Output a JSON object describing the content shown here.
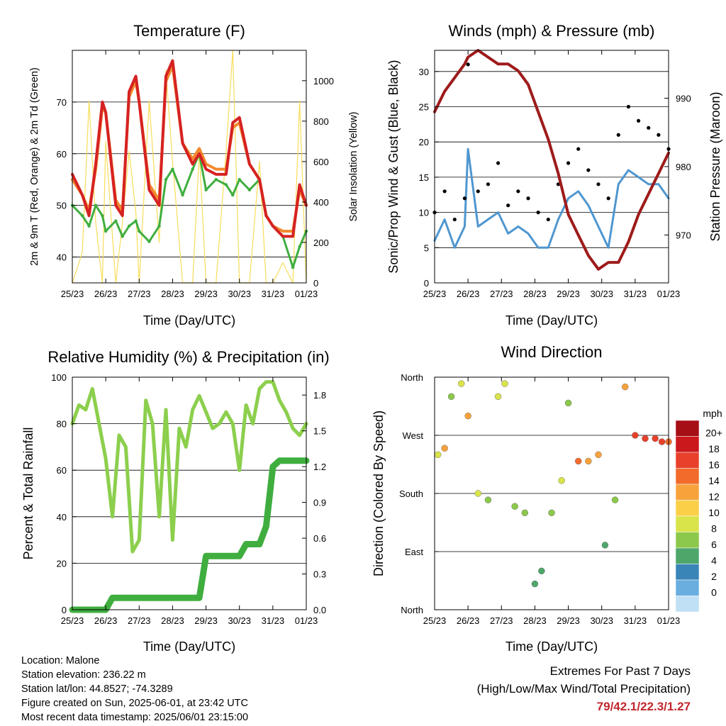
{
  "days": [
    "25/23",
    "26/23",
    "27/23",
    "28/23",
    "29/23",
    "30/23",
    "31/23",
    "01/23"
  ],
  "colors": {
    "temp2m": "#d62222",
    "temp9m": "#f28a2e",
    "dew": "#3fae3f",
    "solar": "#f7dd5a",
    "gust": "#000000",
    "wind": "#4f97d0",
    "pressure": "#9e1b1b",
    "rh": "#8ccf4d",
    "precip": "#3fae3f"
  },
  "temperature": {
    "title": "Temperature (F)",
    "xlabel": "Time (Day/UTC)",
    "ylabel_left": "2m & 9m T (Red, Orange) & 2m Td (Green)",
    "ylabel_right": "Solar Insolation (Yellow)",
    "y_ticks_left": [
      "40",
      "50",
      "60",
      "70"
    ],
    "y_ticks_right": [
      "0",
      "200",
      "400",
      "600",
      "800",
      "1000"
    ]
  },
  "winds": {
    "title": "Winds (mph) & Pressure (mb)",
    "xlabel": "Time (Day/UTC)",
    "ylabel_left": "Sonic/Prop Wind & Gust (Blue, Black)",
    "ylabel_right": "Station Pressure (Maroon)",
    "y_ticks_left": [
      "0",
      "5",
      "10",
      "15",
      "20",
      "25",
      "30"
    ],
    "y_ticks_right": [
      "970",
      "980",
      "990"
    ]
  },
  "humidity": {
    "title": "Relative Humidity (%) & Precipitation (in)",
    "xlabel": "Time (Day/UTC)",
    "ylabel_left": "Percent & Total Rainfall",
    "y_ticks_left": [
      "0",
      "20",
      "40",
      "60",
      "80",
      "100"
    ],
    "y_ticks_right": [
      "0.0",
      "0.3",
      "0.6",
      "0.9",
      "1.2",
      "1.5",
      "1.8"
    ]
  },
  "direction": {
    "title": "Wind Direction",
    "xlabel": "Time (Day/UTC)",
    "ylabel": "Direction (Colored By Speed)",
    "y_ticks": [
      "North",
      "East",
      "South",
      "West",
      "North"
    ],
    "legend_title": "mph",
    "legend_labels": [
      "20+",
      "18",
      "16",
      "14",
      "12",
      "10",
      "8",
      "6",
      "4",
      "2",
      "0"
    ],
    "legend_colors": [
      "#a50f15",
      "#cb181d",
      "#e8412b",
      "#f26b2b",
      "#f8a23c",
      "#fbd048",
      "#d9e34a",
      "#8cc84b",
      "#4fa66b",
      "#3a85b8",
      "#6aaee0",
      "#bfe0f5"
    ]
  },
  "info": {
    "location": "Location: Malone",
    "elevation": "Station elevation: 236.22 m",
    "latlon": "Station lat/lon: 44.8527; -74.3289",
    "created": "Figure created on Sun, 2025-06-01, at 23:42 UTC",
    "timestamp": "Most recent data timestamp: 2025/06/01 23:15:00"
  },
  "extremes": {
    "title": "Extremes For Past 7 Days",
    "subtitle": "(High/Low/Max Wind/Total Precipitation)",
    "values": "79/42.1/22.3/1.27"
  },
  "chart_data": [
    {
      "type": "line",
      "title": "Temperature (F)",
      "xlabel": "Time (Day/UTC)",
      "ylabel": "2m & 9m T (Red, Orange) & 2m Td (Green)",
      "ylabel_right": "Solar Insolation (Yellow)",
      "xlim": [
        0,
        7
      ],
      "ylim": [
        35,
        80
      ],
      "ylim_right": [
        0,
        1150
      ],
      "x": [
        0,
        0.3,
        0.5,
        0.7,
        0.9,
        1.0,
        1.3,
        1.5,
        1.7,
        1.9,
        2.0,
        2.3,
        2.6,
        2.8,
        3.0,
        3.3,
        3.6,
        3.8,
        4.0,
        4.3,
        4.6,
        4.8,
        5.0,
        5.3,
        5.6,
        5.8,
        6.0,
        6.3,
        6.6,
        6.8,
        7.0
      ],
      "series": [
        {
          "name": "2m T",
          "values": [
            56,
            52,
            48,
            58,
            70,
            68,
            50,
            48,
            72,
            75,
            70,
            53,
            50,
            75,
            78,
            62,
            58,
            60,
            57,
            56,
            56,
            66,
            67,
            58,
            55,
            48,
            46,
            44,
            44,
            54,
            50
          ]
        },
        {
          "name": "9m T",
          "values": [
            55,
            52,
            49,
            57,
            69,
            68,
            51,
            49,
            71,
            74,
            70,
            54,
            51,
            74,
            77,
            62,
            59,
            61,
            58,
            57,
            57,
            65,
            66,
            58,
            55,
            48,
            46,
            45,
            45,
            53,
            50
          ]
        },
        {
          "name": "2m Td",
          "values": [
            50,
            48,
            46,
            50,
            48,
            45,
            47,
            44,
            46,
            47,
            45,
            43,
            46,
            55,
            57,
            52,
            57,
            60,
            53,
            55,
            54,
            52,
            55,
            53,
            55,
            48,
            46,
            44,
            38,
            42,
            45
          ]
        },
        {
          "name": "Solar Insolation",
          "axis": "right",
          "values": [
            0,
            150,
            900,
            300,
            0,
            700,
            0,
            300,
            650,
            350,
            0,
            900,
            200,
            1050,
            600,
            0,
            0,
            650,
            0,
            0,
            650,
            1150,
            0,
            0,
            600,
            0,
            0,
            100,
            0,
            900,
            0
          ]
        }
      ]
    },
    {
      "type": "line",
      "title": "Winds (mph) & Pressure (mb)",
      "xlabel": "Time (Day/UTC)",
      "ylabel": "Sonic/Prop Wind & Gust (Blue, Black)",
      "ylabel_right": "Station Pressure (Maroon)",
      "xlim": [
        0,
        7
      ],
      "ylim": [
        0,
        33
      ],
      "ylim_right": [
        963,
        997
      ],
      "x": [
        0,
        0.3,
        0.6,
        0.9,
        1.0,
        1.3,
        1.6,
        1.9,
        2.2,
        2.5,
        2.8,
        3.1,
        3.4,
        3.7,
        4.0,
        4.3,
        4.6,
        4.9,
        5.2,
        5.5,
        5.8,
        6.1,
        6.4,
        6.7,
        7.0
      ],
      "series": [
        {
          "name": "Gust",
          "values": [
            10,
            13,
            9,
            12,
            31,
            13,
            14,
            17,
            11,
            13,
            12,
            10,
            9,
            14,
            17,
            19,
            16,
            14,
            12,
            21,
            25,
            23,
            22,
            21,
            19
          ]
        },
        {
          "name": "Wind",
          "values": [
            6,
            9,
            5,
            8,
            19,
            8,
            9,
            10,
            7,
            8,
            7,
            5,
            5,
            9,
            12,
            13,
            11,
            8,
            5,
            14,
            16,
            15,
            14,
            14,
            12
          ]
        },
        {
          "name": "Pressure",
          "axis": "right",
          "values": [
            988,
            991,
            993,
            995,
            996,
            997,
            996,
            995,
            995,
            994,
            992,
            988,
            984,
            979,
            973,
            970,
            967,
            965,
            966,
            966,
            969,
            973,
            976,
            979,
            982
          ]
        }
      ]
    },
    {
      "type": "line",
      "title": "Relative Humidity (%) & Precipitation (in)",
      "xlabel": "Time (Day/UTC)",
      "ylabel": "Percent & Total Rainfall",
      "xlim": [
        0,
        7
      ],
      "ylim": [
        0,
        100
      ],
      "ylim_right": [
        0,
        1.95
      ],
      "x": [
        0,
        0.2,
        0.4,
        0.6,
        0.8,
        1.0,
        1.2,
        1.4,
        1.6,
        1.8,
        2.0,
        2.2,
        2.4,
        2.6,
        2.8,
        3.0,
        3.2,
        3.4,
        3.6,
        3.8,
        4.0,
        4.2,
        4.4,
        4.6,
        4.8,
        5.0,
        5.2,
        5.4,
        5.6,
        5.8,
        6.0,
        6.2,
        6.4,
        6.6,
        6.8,
        7.0
      ],
      "series": [
        {
          "name": "Relative Humidity",
          "values": [
            80,
            88,
            86,
            95,
            80,
            65,
            40,
            75,
            70,
            25,
            30,
            90,
            80,
            40,
            86,
            30,
            78,
            70,
            86,
            92,
            85,
            78,
            80,
            85,
            80,
            60,
            88,
            80,
            95,
            98,
            98,
            90,
            85,
            78,
            75,
            80
          ]
        },
        {
          "name": "Total Precipitation",
          "axis": "right",
          "values": [
            0,
            0,
            0,
            0,
            0,
            0,
            0.1,
            0.1,
            0.1,
            0.1,
            0.1,
            0.1,
            0.1,
            0.1,
            0.1,
            0.1,
            0.1,
            0.1,
            0.1,
            0.1,
            0.45,
            0.45,
            0.45,
            0.45,
            0.45,
            0.45,
            0.55,
            0.55,
            0.55,
            0.7,
            1.2,
            1.25,
            1.25,
            1.25,
            1.25,
            1.25
          ]
        }
      ]
    },
    {
      "type": "scatter",
      "title": "Wind Direction",
      "xlabel": "Time (Day/UTC)",
      "ylabel": "Direction (Colored By Speed)",
      "xlim": [
        0,
        7
      ],
      "ylim": [
        0,
        360
      ],
      "x": [
        0.1,
        0.3,
        0.5,
        0.8,
        1.0,
        1.3,
        1.6,
        1.9,
        2.1,
        2.4,
        2.7,
        3.0,
        3.2,
        3.5,
        3.8,
        4.0,
        4.3,
        4.6,
        4.9,
        5.1,
        5.4,
        5.7,
        6.0,
        6.3,
        6.6,
        6.8,
        7.0
      ],
      "series": [
        {
          "name": "Direction",
          "values": [
            240,
            250,
            330,
            350,
            300,
            180,
            170,
            330,
            350,
            160,
            150,
            40,
            60,
            150,
            200,
            320,
            230,
            230,
            240,
            100,
            170,
            345,
            270,
            265,
            265,
            260,
            260
          ]
        },
        {
          "name": "Speed",
          "values": [
            10,
            13,
            8,
            9,
            12,
            10,
            8,
            9,
            10,
            7,
            8,
            5,
            6,
            8,
            9,
            7,
            14,
            12,
            13,
            5,
            8,
            12,
            16,
            16,
            17,
            16,
            15
          ]
        }
      ]
    }
  ]
}
